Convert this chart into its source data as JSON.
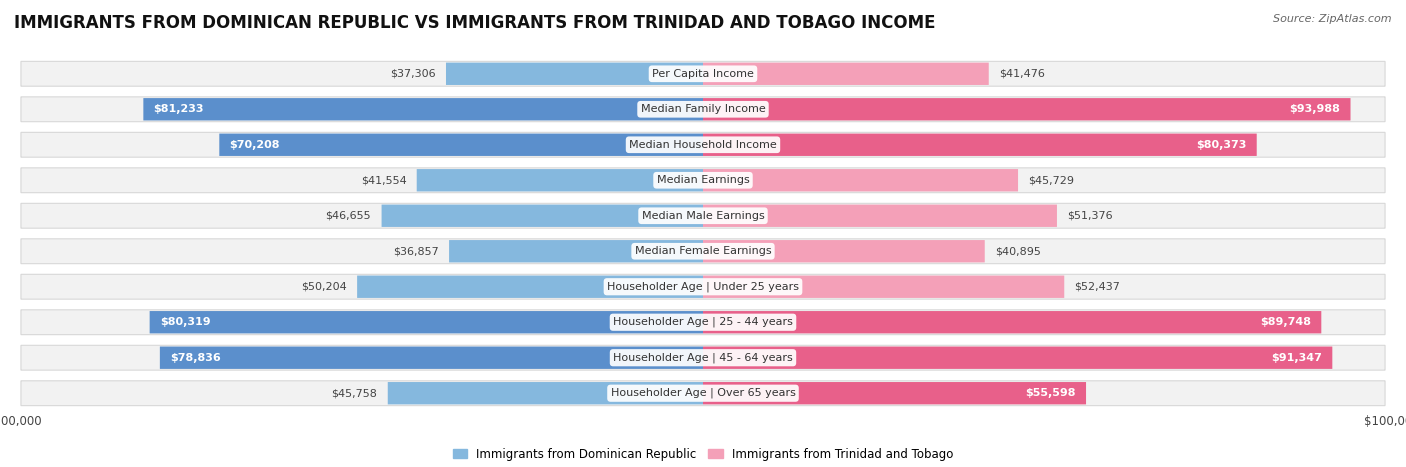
{
  "title": "IMMIGRANTS FROM DOMINICAN REPUBLIC VS IMMIGRANTS FROM TRINIDAD AND TOBAGO INCOME",
  "source": "Source: ZipAtlas.com",
  "categories": [
    "Per Capita Income",
    "Median Family Income",
    "Median Household Income",
    "Median Earnings",
    "Median Male Earnings",
    "Median Female Earnings",
    "Householder Age | Under 25 years",
    "Householder Age | 25 - 44 years",
    "Householder Age | 45 - 64 years",
    "Householder Age | Over 65 years"
  ],
  "dominican": [
    37306,
    81233,
    70208,
    41554,
    46655,
    36857,
    50204,
    80319,
    78836,
    45758
  ],
  "trinidad": [
    41476,
    93988,
    80373,
    45729,
    51376,
    40895,
    52437,
    89748,
    91347,
    55598
  ],
  "dominican_labels": [
    "$37,306",
    "$81,233",
    "$70,208",
    "$41,554",
    "$46,655",
    "$36,857",
    "$50,204",
    "$80,319",
    "$78,836",
    "$45,758"
  ],
  "trinidad_labels": [
    "$41,476",
    "$93,988",
    "$80,373",
    "$45,729",
    "$51,376",
    "$40,895",
    "$52,437",
    "$89,748",
    "$91,347",
    "$55,598"
  ],
  "color_dominican": "#85b8de",
  "color_trinidad": "#f4a0b8",
  "color_dominican_sat": "#5b8fcc",
  "color_trinidad_sat": "#e8608a",
  "max_val": 100000,
  "bg_color": "#ffffff",
  "row_bg": "#f2f2f2",
  "row_border": "#d8d8d8",
  "legend_dominican": "Immigrants from Dominican Republic",
  "legend_trinidad": "Immigrants from Trinidad and Tobago",
  "title_fontsize": 12,
  "label_fontsize": 8,
  "category_fontsize": 8,
  "inside_threshold": 55000
}
